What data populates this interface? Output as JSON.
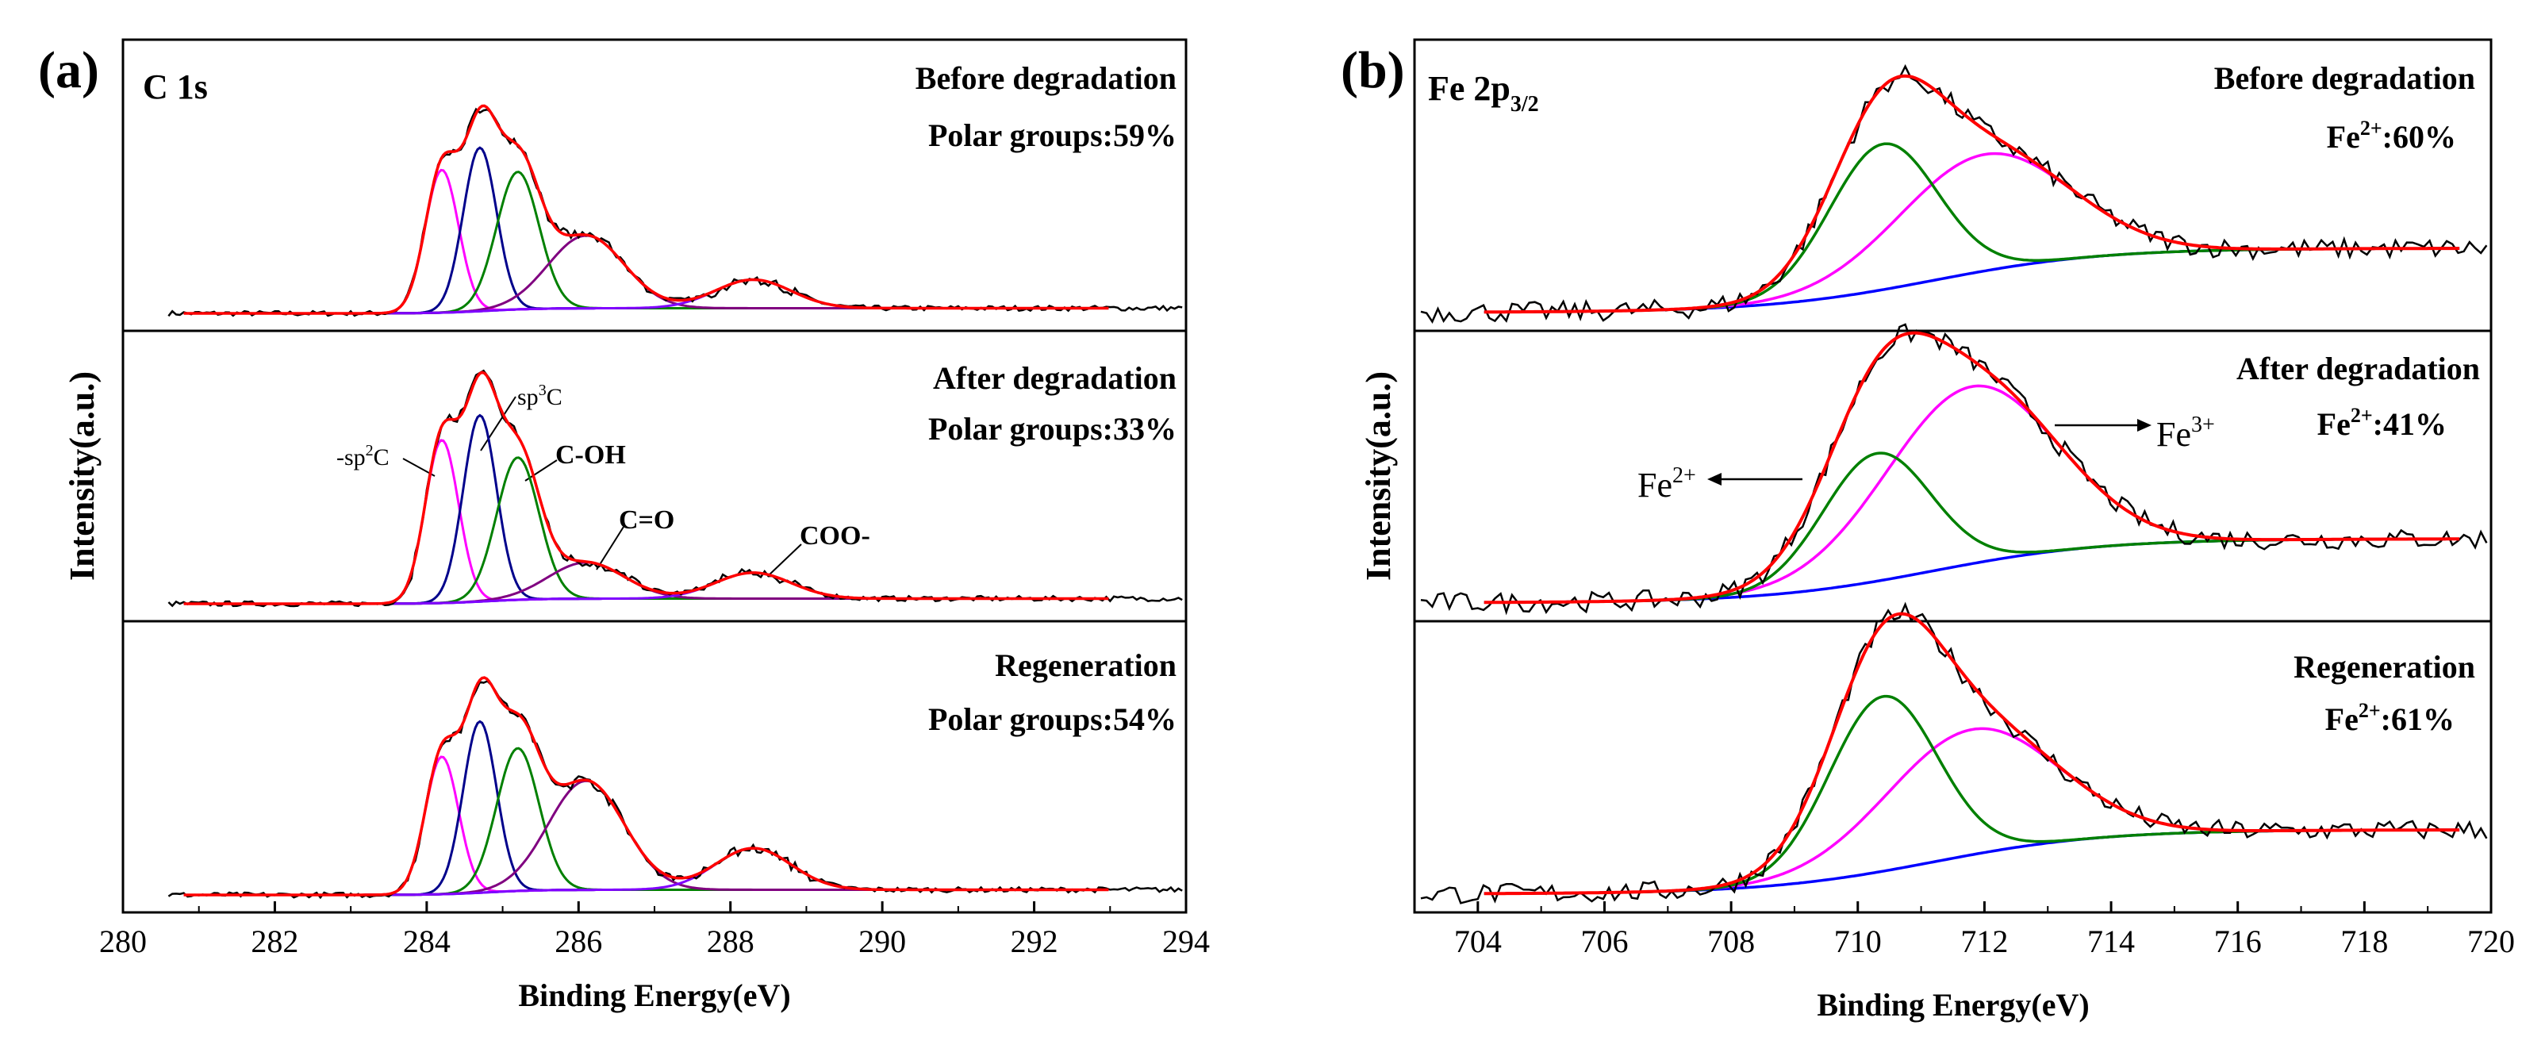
{
  "chart_data": [
    {
      "type": "line",
      "panel_label": "(a)",
      "spectrum": "C 1s",
      "xlabel": "Binding Energy(eV)",
      "ylabel": "Intensity(a.u.)",
      "xlim": [
        280,
        294
      ],
      "xticks": [
        "280",
        "282",
        "284",
        "286",
        "288",
        "290",
        "292",
        "294"
      ],
      "colors": {
        "data": "#000000",
        "envelope": "#ff0000",
        "c_sp2": "#ff00ff",
        "c_sp3": "#00008b",
        "c_oh": "#008000",
        "c_o": "#800080",
        "coo": "#8000ff",
        "baseline": "#0000ff"
      },
      "peaks_eV": {
        "c_sp2": 284.2,
        "c_sp3": 284.7,
        "c_oh": 285.2,
        "c_o": 286.1,
        "coo": 288.3
      },
      "annotations": [
        "-sp²C",
        "sp³C",
        "C-OH",
        "C=O",
        "COO-"
      ],
      "subpanels": [
        {
          "title": "Before degradation",
          "polar_groups": "Polar groups:59%",
          "heights": {
            "c_sp2": 0.55,
            "c_sp3": 0.63,
            "c_oh": 0.53,
            "c_o": 0.28,
            "coo": 0.11
          }
        },
        {
          "title": "After degradation",
          "polar_groups": "Polar groups:33%",
          "heights": {
            "c_sp2": 0.63,
            "c_sp3": 0.72,
            "c_oh": 0.55,
            "c_o": 0.14,
            "coo": 0.1
          }
        },
        {
          "title": "Regeneration",
          "polar_groups": "Polar groups:54%",
          "heights": {
            "c_sp2": 0.53,
            "c_sp3": 0.66,
            "c_oh": 0.55,
            "c_o": 0.42,
            "coo": 0.16
          }
        }
      ]
    },
    {
      "type": "line",
      "panel_label": "(b)",
      "spectrum": "Fe 2p",
      "spectrum_sub": "3/2",
      "xlabel": "Binding Energy(eV)",
      "ylabel": "Intensity(a.u.)",
      "xlim": [
        703,
        720
      ],
      "xticks": [
        "704",
        "706",
        "708",
        "710",
        "712",
        "714",
        "716",
        "718",
        "720"
      ],
      "colors": {
        "data": "#000000",
        "envelope": "#ff0000",
        "fe2": "#008000",
        "fe3": "#ff00ff",
        "baseline": "#0000ff"
      },
      "annotations": {
        "fe3": "Fe",
        "fe3_sup": "3+",
        "fe2": "Fe",
        "fe2_sup": "2+"
      },
      "subpanels": [
        {
          "title": "Before degradation",
          "ratio_prefix": "Fe",
          "ratio_sup": "2+",
          "ratio_value": ":60%",
          "fe2_center": 710.4,
          "fe2_height": 0.5,
          "fe3_center": 712.0,
          "fe3_height": 0.4
        },
        {
          "title": "After degradation",
          "ratio_prefix": "Fe",
          "ratio_sup": "2+",
          "ratio_value": ":41%",
          "fe2_center": 710.3,
          "fe2_height": 0.44,
          "fe3_center": 711.8,
          "fe3_height": 0.61
        },
        {
          "title": "Regeneration",
          "ratio_prefix": "Fe",
          "ratio_sup": "2+",
          "ratio_value": ":61%",
          "fe2_center": 710.4,
          "fe2_height": 0.6,
          "fe3_center": 711.8,
          "fe3_height": 0.43
        }
      ]
    }
  ]
}
